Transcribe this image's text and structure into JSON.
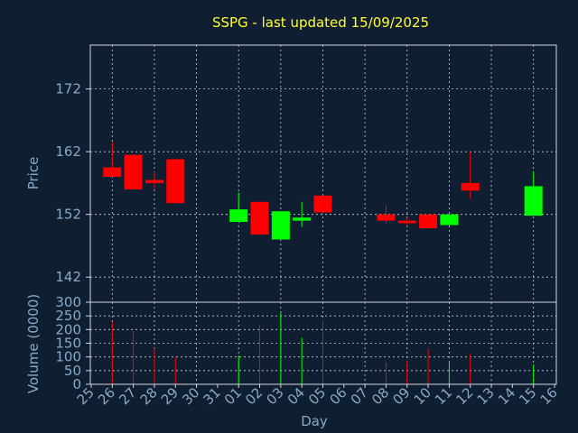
{
  "chart_data": [
    {
      "type": "candlestick",
      "title": "SSPG - last updated 15/09/2025",
      "ylabel": "Price",
      "yticks": [
        142,
        152,
        162,
        172
      ],
      "ylim": [
        138,
        179
      ],
      "grid": true,
      "colors": {
        "up": "#00ff00",
        "down": "#ff0000"
      },
      "candles": [
        {
          "day": "26",
          "open": 159.5,
          "high": 163.5,
          "low": 158.0,
          "close": 158.0
        },
        {
          "day": "27",
          "open": 161.5,
          "high": 161.5,
          "low": 156.0,
          "close": 156.0
        },
        {
          "day": "28",
          "open": 157.5,
          "high": 158.8,
          "low": 156.0,
          "close": 157.0
        },
        {
          "day": "29",
          "open": 160.8,
          "high": 160.8,
          "low": 153.8,
          "close": 153.8
        },
        {
          "day": "01",
          "open": 150.8,
          "high": 155.5,
          "low": 150.8,
          "close": 152.8
        },
        {
          "day": "02",
          "open": 154.0,
          "high": 154.0,
          "low": 148.8,
          "close": 148.8
        },
        {
          "day": "03",
          "open": 148.0,
          "high": 152.5,
          "low": 148.0,
          "close": 152.5
        },
        {
          "day": "04",
          "open": 151.0,
          "high": 154.0,
          "low": 150.0,
          "close": 151.5
        },
        {
          "day": "05",
          "open": 155.0,
          "high": 155.0,
          "low": 152.0,
          "close": 152.3
        },
        {
          "day": "08",
          "open": 152.0,
          "high": 153.5,
          "low": 150.5,
          "close": 151.0
        },
        {
          "day": "09",
          "open": 151.0,
          "high": 151.5,
          "low": 150.3,
          "close": 150.6
        },
        {
          "day": "10",
          "open": 152.0,
          "high": 152.0,
          "low": 149.8,
          "close": 149.8
        },
        {
          "day": "11",
          "open": 150.3,
          "high": 152.0,
          "low": 150.3,
          "close": 152.0
        },
        {
          "day": "12",
          "open": 157.0,
          "high": 162.0,
          "low": 154.5,
          "close": 155.8
        },
        {
          "day": "15",
          "open": 151.8,
          "high": 158.8,
          "low": 151.8,
          "close": 156.5
        }
      ]
    },
    {
      "type": "bar",
      "xlabel": "Day",
      "ylabel": "Volume (0000)",
      "yticks": [
        0,
        50,
        100,
        150,
        200,
        250,
        300
      ],
      "ylim": [
        0,
        300
      ],
      "grid": true,
      "categories": [
        "25",
        "26",
        "27",
        "28",
        "29",
        "30",
        "31",
        "01",
        "02",
        "03",
        "04",
        "05",
        "06",
        "07",
        "08",
        "09",
        "10",
        "11",
        "12",
        "13",
        "14",
        "15",
        "16"
      ],
      "bars": [
        {
          "day": "26",
          "value": 228,
          "direction": "down"
        },
        {
          "day": "27",
          "value": 195,
          "direction": "down"
        },
        {
          "day": "28",
          "value": 130,
          "direction": "down"
        },
        {
          "day": "29",
          "value": 100,
          "direction": "down"
        },
        {
          "day": "01",
          "value": 105,
          "direction": "up"
        },
        {
          "day": "02",
          "value": 218,
          "direction": "down"
        },
        {
          "day": "03",
          "value": 265,
          "direction": "up"
        },
        {
          "day": "04",
          "value": 170,
          "direction": "up"
        },
        {
          "day": "05",
          "value": 235,
          "direction": "down"
        },
        {
          "day": "08",
          "value": 80,
          "direction": "down"
        },
        {
          "day": "09",
          "value": 85,
          "direction": "down"
        },
        {
          "day": "10",
          "value": 130,
          "direction": "down"
        },
        {
          "day": "11",
          "value": 80,
          "direction": "up"
        },
        {
          "day": "12",
          "value": 110,
          "direction": "down"
        },
        {
          "day": "15",
          "value": 72,
          "direction": "up"
        }
      ]
    }
  ]
}
